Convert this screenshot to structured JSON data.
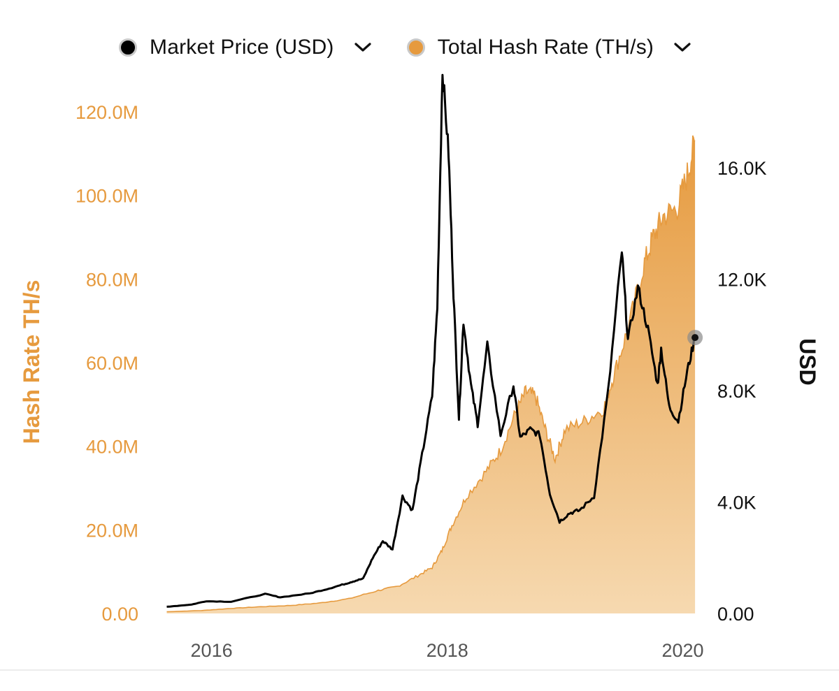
{
  "legend": {
    "items": [
      {
        "label": "Market Price (USD)",
        "color": "#000000",
        "icon": "chevron-down-icon"
      },
      {
        "label": "Total Hash Rate (TH/s)",
        "color": "#e69a3e",
        "icon": "chevron-down-icon"
      }
    ]
  },
  "chart_data": {
    "type": "line",
    "x_axis": {
      "ticks": [
        "2016",
        "2018",
        "2020"
      ],
      "range": [
        "2015-08",
        "2020-02"
      ]
    },
    "y_left": {
      "label": "Hash Rate TH/s",
      "ticks": [
        "0.00",
        "20.0M",
        "40.0M",
        "60.0M",
        "80.0M",
        "100.0M",
        "120.0M"
      ],
      "range": [
        0,
        120000000
      ],
      "color": "#e69a3e"
    },
    "y_right": {
      "label": "USD",
      "ticks": [
        "0.00",
        "4.0K",
        "8.0K",
        "12.0K",
        "16.0K"
      ],
      "range": [
        0,
        18000
      ],
      "color": "#111111"
    },
    "series": [
      {
        "name": "Total Hash Rate (TH/s)",
        "axis": "left",
        "style": "area",
        "color": "#e69a3e",
        "points": [
          [
            "2015-08-15",
            400000
          ],
          [
            "2015-12-01",
            700000
          ],
          [
            "2016-03-01",
            1200000
          ],
          [
            "2016-06-01",
            1600000
          ],
          [
            "2016-09-01",
            1900000
          ],
          [
            "2016-12-01",
            2500000
          ],
          [
            "2017-03-01",
            3500000
          ],
          [
            "2017-06-01",
            5500000
          ],
          [
            "2017-08-01",
            6500000
          ],
          [
            "2017-10-01",
            9000000
          ],
          [
            "2017-11-15",
            11000000
          ],
          [
            "2017-12-15",
            15000000
          ],
          [
            "2018-01-15",
            21000000
          ],
          [
            "2018-03-01",
            28000000
          ],
          [
            "2018-05-01",
            34000000
          ],
          [
            "2018-06-15",
            39000000
          ],
          [
            "2018-08-01",
            48000000
          ],
          [
            "2018-09-01",
            53000000
          ],
          [
            "2018-10-01",
            52000000
          ],
          [
            "2018-11-01",
            44000000
          ],
          [
            "2018-12-01",
            37000000
          ],
          [
            "2019-01-01",
            44000000
          ],
          [
            "2019-03-01",
            46000000
          ],
          [
            "2019-05-01",
            49000000
          ],
          [
            "2019-06-01",
            57000000
          ],
          [
            "2019-07-15",
            68000000
          ],
          [
            "2019-09-01",
            83000000
          ],
          [
            "2019-10-01",
            90000000
          ],
          [
            "2019-11-01",
            95000000
          ],
          [
            "2019-12-15",
            97000000
          ],
          [
            "2020-01-15",
            105000000
          ],
          [
            "2020-02-08",
            113000000
          ]
        ]
      },
      {
        "name": "Market Price (USD)",
        "axis": "right",
        "style": "line",
        "color": "#000000",
        "points": [
          [
            "2015-08-15",
            240
          ],
          [
            "2015-11-01",
            320
          ],
          [
            "2015-12-15",
            440
          ],
          [
            "2016-03-01",
            420
          ],
          [
            "2016-06-15",
            700
          ],
          [
            "2016-08-01",
            580
          ],
          [
            "2016-11-01",
            720
          ],
          [
            "2017-01-01",
            900
          ],
          [
            "2017-02-15",
            1050
          ],
          [
            "2017-03-15",
            1150
          ],
          [
            "2017-04-15",
            1250
          ],
          [
            "2017-05-15",
            2000
          ],
          [
            "2017-06-15",
            2600
          ],
          [
            "2017-07-15",
            2300
          ],
          [
            "2017-08-15",
            4200
          ],
          [
            "2017-09-15",
            3700
          ],
          [
            "2017-10-15",
            5700
          ],
          [
            "2017-11-15",
            7800
          ],
          [
            "2017-12-01",
            11000
          ],
          [
            "2017-12-17",
            19500
          ],
          [
            "2018-01-05",
            16500
          ],
          [
            "2018-01-20",
            11500
          ],
          [
            "2018-02-06",
            7000
          ],
          [
            "2018-02-20",
            10500
          ],
          [
            "2018-03-15",
            8200
          ],
          [
            "2018-04-05",
            6800
          ],
          [
            "2018-05-05",
            9600
          ],
          [
            "2018-06-15",
            6400
          ],
          [
            "2018-07-25",
            8200
          ],
          [
            "2018-08-15",
            6300
          ],
          [
            "2018-09-15",
            6600
          ],
          [
            "2018-10-15",
            6400
          ],
          [
            "2018-11-15",
            4300
          ],
          [
            "2018-12-15",
            3300
          ],
          [
            "2019-01-15",
            3600
          ],
          [
            "2019-02-15",
            3700
          ],
          [
            "2019-04-01",
            4200
          ],
          [
            "2019-05-15",
            8000
          ],
          [
            "2019-06-26",
            13000
          ],
          [
            "2019-07-15",
            9800
          ],
          [
            "2019-08-15",
            11700
          ],
          [
            "2019-09-15",
            10200
          ],
          [
            "2019-10-15",
            8200
          ],
          [
            "2019-10-26",
            9500
          ],
          [
            "2019-11-20",
            7400
          ],
          [
            "2019-12-18",
            6900
          ],
          [
            "2020-01-15",
            8700
          ],
          [
            "2020-02-08",
            9900
          ]
        ]
      }
    ],
    "grid": false,
    "legend_position": "top"
  }
}
